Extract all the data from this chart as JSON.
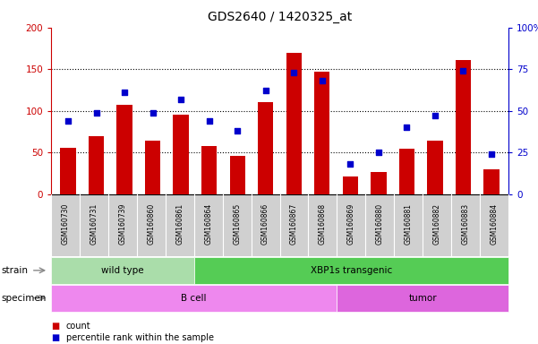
{
  "title": "GDS2640 / 1420325_at",
  "samples": [
    "GSM160730",
    "GSM160731",
    "GSM160739",
    "GSM160860",
    "GSM160861",
    "GSM160864",
    "GSM160865",
    "GSM160866",
    "GSM160867",
    "GSM160868",
    "GSM160869",
    "GSM160880",
    "GSM160881",
    "GSM160882",
    "GSM160883",
    "GSM160884"
  ],
  "counts": [
    56,
    70,
    107,
    64,
    96,
    58,
    46,
    111,
    170,
    147,
    21,
    27,
    55,
    64,
    161,
    30
  ],
  "percentiles": [
    44,
    49,
    61,
    49,
    57,
    44,
    38,
    62,
    73,
    68,
    18,
    25,
    40,
    47,
    74,
    24
  ],
  "bar_color": "#cc0000",
  "dot_color": "#0000cc",
  "ylim_left": [
    0,
    200
  ],
  "ylim_right": [
    0,
    100
  ],
  "yticks_left": [
    0,
    50,
    100,
    150,
    200
  ],
  "yticks_right": [
    0,
    25,
    50,
    75,
    100
  ],
  "ytick_labels_right": [
    "0",
    "25",
    "50",
    "75",
    "100%"
  ],
  "strain_groups": [
    {
      "label": "wild type",
      "start": 0,
      "end": 5,
      "color": "#aaddaa"
    },
    {
      "label": "XBP1s transgenic",
      "start": 5,
      "end": 16,
      "color": "#55cc55"
    }
  ],
  "specimen_groups": [
    {
      "label": "B cell",
      "start": 0,
      "end": 10,
      "color": "#ee88ee"
    },
    {
      "label": "tumor",
      "start": 10,
      "end": 16,
      "color": "#dd66dd"
    }
  ],
  "legend_count_label": "count",
  "legend_pct_label": "percentile rank within the sample",
  "strain_label": "strain",
  "specimen_label": "specimen",
  "xtick_bg": "#d0d0d0",
  "plot_bg": "#ffffff"
}
